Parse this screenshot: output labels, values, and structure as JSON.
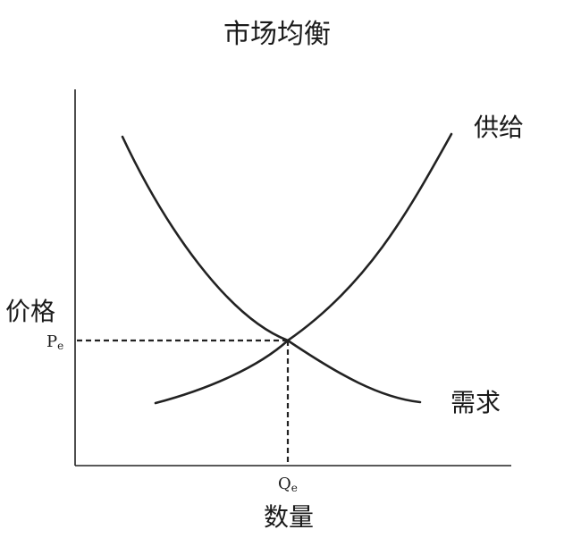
{
  "title": "市场均衡",
  "axes": {
    "x_label": "数量",
    "y_label": "价格"
  },
  "curves": {
    "supply_label": "供给",
    "demand_label": "需求"
  },
  "equilibrium": {
    "price_label": "P",
    "price_subscript": "e",
    "quantity_label": "Q",
    "quantity_subscript": "e"
  }
}
